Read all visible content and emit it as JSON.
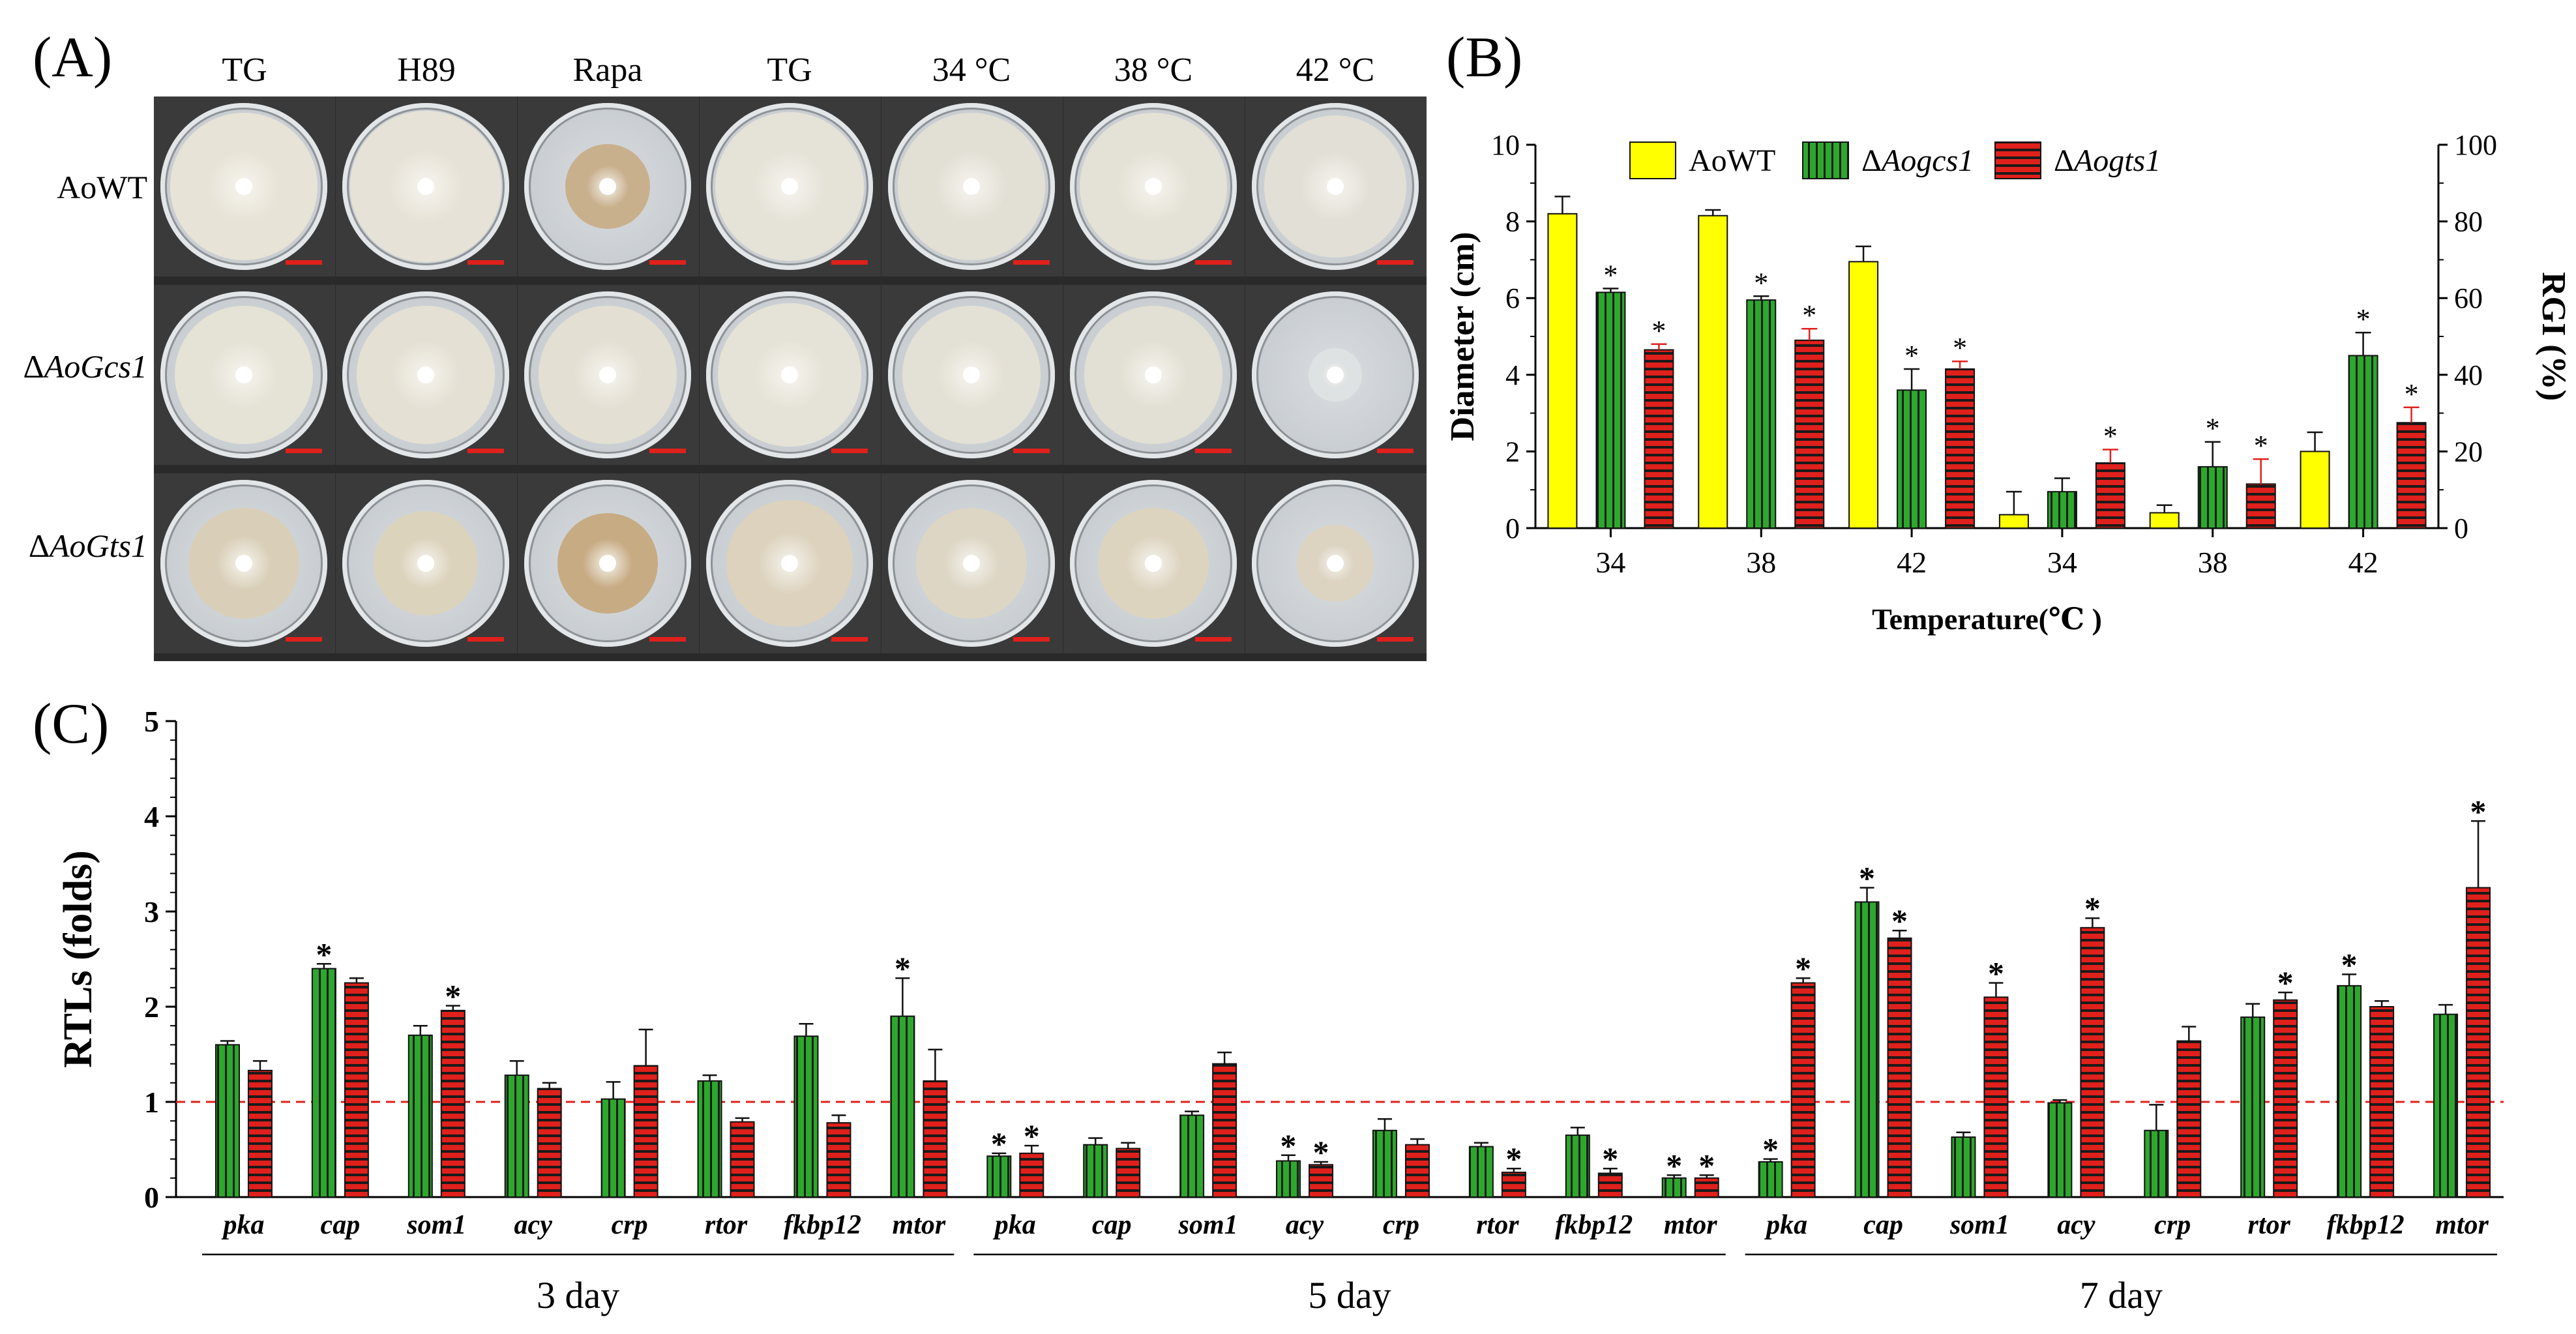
{
  "panel_labels": {
    "a": "(A)",
    "b": "(B)",
    "c": "(C)"
  },
  "panel_a": {
    "column_headers": [
      "TG",
      "H89",
      "Rapa",
      "TG",
      "34 °C",
      "38 °C",
      "42 °C"
    ],
    "rows": [
      {
        "prefix": "",
        "name": "AoWT"
      },
      {
        "prefix": "Δ",
        "name": "AoGcs1"
      },
      {
        "prefix": "Δ",
        "name": "AoGts1"
      }
    ]
  },
  "chart_data": [
    {
      "type": "bar",
      "title": "",
      "xlabel": "Temperature(℃ )",
      "ylabel": "Diameter (cm)",
      "ylabel_right": "RGI (%)",
      "ylim": [
        0,
        10
      ],
      "ylim_right": [
        0,
        100
      ],
      "yticks": [
        "0",
        "2",
        "4",
        "6",
        "8",
        "10"
      ],
      "yticks_right": [
        "0",
        "20",
        "40",
        "60",
        "80",
        "100"
      ],
      "categories": [
        "34",
        "38",
        "42",
        "34",
        "38",
        "42"
      ],
      "legend": [
        {
          "prefix": "",
          "name": "AoWT"
        },
        {
          "prefix": "Δ",
          "name": "Aogcs1"
        },
        {
          "prefix": "Δ",
          "name": "Aogts1"
        }
      ],
      "series": [
        {
          "name": "AoWT",
          "color": "#ffff00",
          "values": [
            8.2,
            8.15,
            6.95,
            0.35,
            0.4,
            2.0
          ],
          "errors": [
            0.45,
            0.15,
            0.4,
            0.6,
            0.2,
            0.5
          ],
          "sig": [
            false,
            false,
            false,
            false,
            false,
            false
          ]
        },
        {
          "name": "ΔAogcs1",
          "color": "#2ca82c",
          "values": [
            6.15,
            5.95,
            3.6,
            0.95,
            1.6,
            4.5
          ],
          "errors": [
            0.1,
            0.1,
            0.55,
            0.35,
            0.65,
            0.6
          ],
          "sig": [
            true,
            true,
            true,
            false,
            true,
            true
          ]
        },
        {
          "name": "ΔAogts1",
          "color": "#e0201b",
          "values": [
            4.65,
            4.9,
            4.15,
            1.7,
            1.15,
            2.75
          ],
          "errors": [
            0.15,
            0.3,
            0.2,
            0.35,
            0.65,
            0.4
          ],
          "sig": [
            true,
            true,
            true,
            true,
            true,
            true
          ]
        }
      ],
      "significance_marker": "*"
    },
    {
      "type": "bar",
      "title": "",
      "xlabel": "",
      "ylabel": "RTLs (folds)",
      "ylim": [
        0,
        5
      ],
      "yticks": [
        "0",
        "1",
        "2",
        "3",
        "4",
        "5"
      ],
      "reference_line": 1,
      "reference_color": "#e0201b",
      "genes": [
        "pka",
        "cap",
        "som1",
        "acy",
        "crp",
        "rtor",
        "fkbp12",
        "mtor"
      ],
      "groups": [
        "3 day",
        "5 day",
        "7 day"
      ],
      "series": [
        {
          "name": "ΔAogcs1",
          "color": "#2ca82c",
          "values": [
            [
              1.6,
              2.4,
              1.7,
              1.28,
              1.03,
              1.22,
              1.69,
              1.9
            ],
            [
              0.43,
              0.55,
              0.86,
              0.38,
              0.7,
              0.53,
              0.65,
              0.2
            ],
            [
              0.37,
              3.1,
              0.63,
              0.99,
              0.7,
              1.89,
              2.22,
              1.92
            ]
          ],
          "errors": [
            [
              0.04,
              0.05,
              0.1,
              0.15,
              0.18,
              0.06,
              0.13,
              0.4
            ],
            [
              0.03,
              0.07,
              0.04,
              0.06,
              0.12,
              0.04,
              0.08,
              0.03
            ],
            [
              0.03,
              0.15,
              0.05,
              0.03,
              0.27,
              0.14,
              0.12,
              0.1
            ]
          ],
          "sig": [
            [
              false,
              true,
              false,
              false,
              false,
              false,
              false,
              true
            ],
            [
              true,
              false,
              false,
              true,
              false,
              false,
              false,
              true
            ],
            [
              true,
              true,
              false,
              false,
              false,
              false,
              true,
              false
            ]
          ]
        },
        {
          "name": "ΔAogts1",
          "color": "#e0201b",
          "values": [
            [
              1.33,
              2.25,
              1.96,
              1.14,
              1.38,
              0.79,
              0.78,
              1.22
            ],
            [
              0.46,
              0.51,
              1.4,
              0.34,
              0.55,
              0.26,
              0.25,
              0.2
            ],
            [
              2.25,
              2.72,
              2.1,
              2.83,
              1.64,
              2.07,
              2.0,
              3.25
            ]
          ],
          "errors": [
            [
              0.1,
              0.05,
              0.05,
              0.06,
              0.38,
              0.04,
              0.08,
              0.33
            ],
            [
              0.08,
              0.06,
              0.12,
              0.03,
              0.06,
              0.04,
              0.05,
              0.03
            ],
            [
              0.05,
              0.08,
              0.15,
              0.1,
              0.15,
              0.08,
              0.06,
              0.7
            ]
          ],
          "sig": [
            [
              false,
              false,
              true,
              false,
              false,
              false,
              false,
              false
            ],
            [
              true,
              false,
              false,
              true,
              false,
              true,
              true,
              true
            ],
            [
              true,
              true,
              true,
              true,
              false,
              true,
              false,
              true
            ]
          ]
        }
      ],
      "significance_marker": "*"
    }
  ]
}
